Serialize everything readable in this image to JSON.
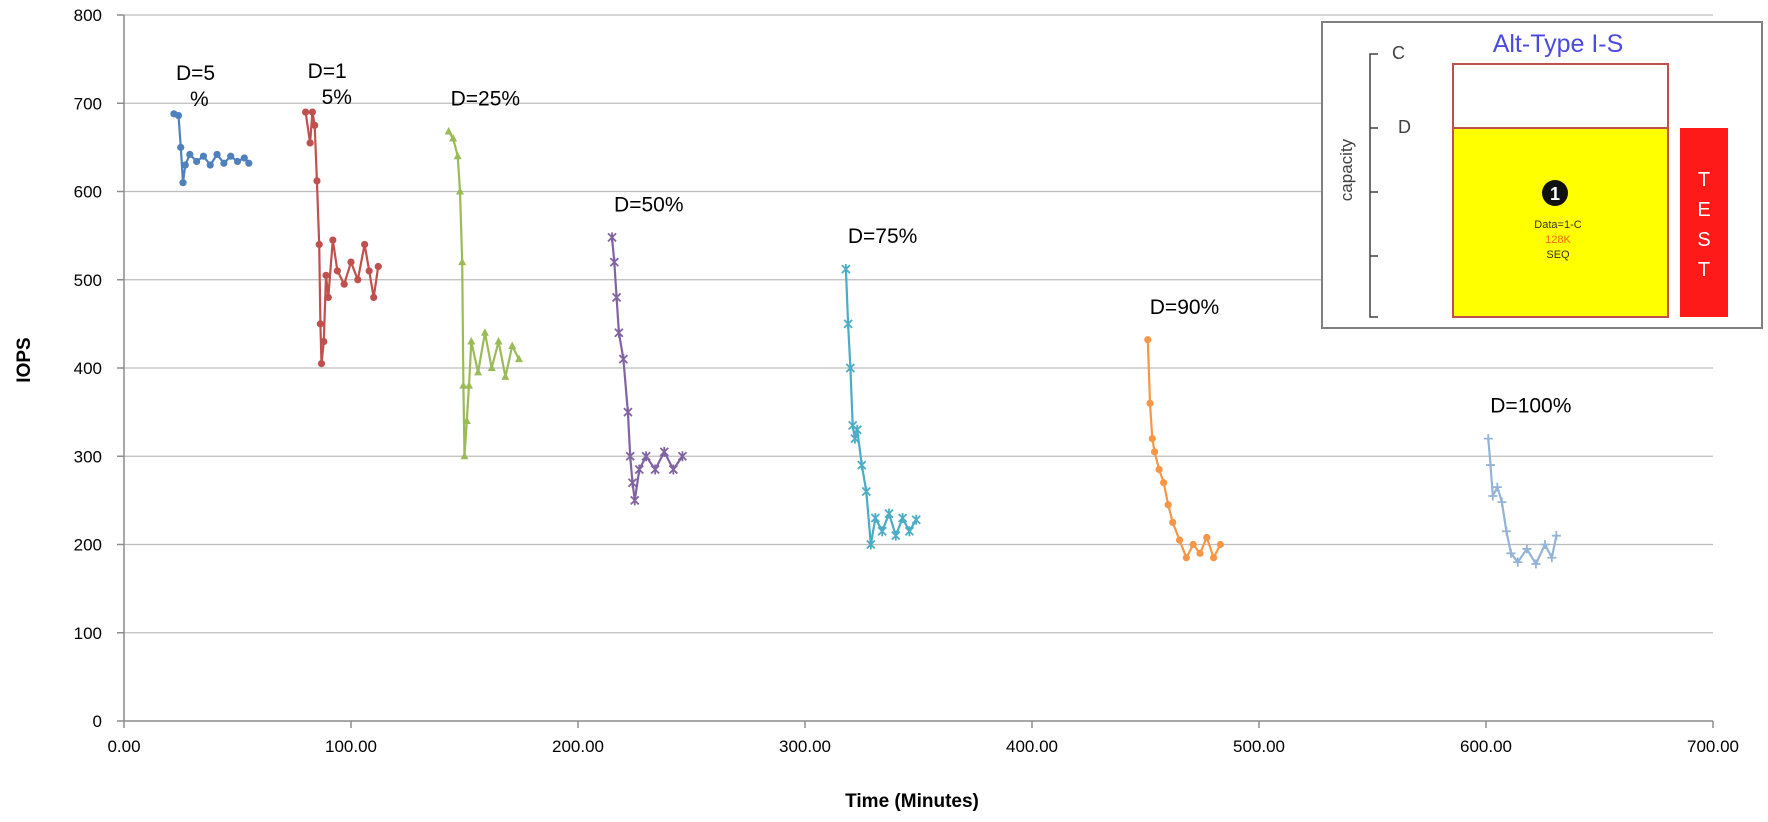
{
  "chart_data": {
    "type": "line",
    "xlabel": "Time (Minutes)",
    "ylabel": "IOPS",
    "xlim": [
      0,
      700
    ],
    "ylim": [
      0,
      800
    ],
    "x_ticks": [
      "0.00",
      "100.00",
      "200.00",
      "300.00",
      "400.00",
      "500.00",
      "600.00",
      "700.00"
    ],
    "y_ticks": [
      "0",
      "100",
      "200",
      "300",
      "400",
      "500",
      "600",
      "700",
      "800"
    ],
    "grid": true,
    "legend": "none",
    "series": [
      {
        "color": "#4f81bd",
        "marker": "circle",
        "label_lines": [
          "D=5",
          "%"
        ],
        "points": [
          [
            22,
            688
          ],
          [
            24,
            686
          ],
          [
            25,
            650
          ],
          [
            26,
            610
          ],
          [
            27,
            630
          ],
          [
            29,
            642
          ],
          [
            32,
            634
          ],
          [
            35,
            640
          ],
          [
            38,
            630
          ],
          [
            41,
            642
          ],
          [
            44,
            632
          ],
          [
            47,
            640
          ],
          [
            50,
            634
          ],
          [
            53,
            638
          ],
          [
            55,
            632
          ]
        ]
      },
      {
        "color": "#c0504d",
        "marker": "circle",
        "label_lines": [
          "D=1",
          "5%"
        ],
        "points": [
          [
            80,
            690
          ],
          [
            82,
            655
          ],
          [
            83,
            690
          ],
          [
            84,
            675
          ],
          [
            85,
            612
          ],
          [
            86,
            540
          ],
          [
            86.5,
            450
          ],
          [
            87,
            405
          ],
          [
            88,
            430
          ],
          [
            89,
            505
          ],
          [
            90,
            480
          ],
          [
            92,
            545
          ],
          [
            94,
            510
          ],
          [
            97,
            495
          ],
          [
            100,
            520
          ],
          [
            103,
            500
          ],
          [
            106,
            540
          ],
          [
            108,
            510
          ],
          [
            110,
            480
          ],
          [
            112,
            515
          ]
        ]
      },
      {
        "color": "#9bbb59",
        "marker": "triangle",
        "label_lines": [
          "D=25%"
        ],
        "points": [
          [
            143,
            668
          ],
          [
            145,
            660
          ],
          [
            147,
            640
          ],
          [
            148,
            600
          ],
          [
            149,
            520
          ],
          [
            149.5,
            380
          ],
          [
            150,
            300
          ],
          [
            151,
            340
          ],
          [
            152,
            380
          ],
          [
            153,
            430
          ],
          [
            156,
            395
          ],
          [
            159,
            440
          ],
          [
            162,
            400
          ],
          [
            165,
            430
          ],
          [
            168,
            390
          ],
          [
            171,
            425
          ],
          [
            174,
            410
          ]
        ]
      },
      {
        "color": "#8064a2",
        "marker": "star",
        "label_lines": [
          "D=50%"
        ],
        "points": [
          [
            215,
            548
          ],
          [
            216,
            520
          ],
          [
            217,
            480
          ],
          [
            218,
            440
          ],
          [
            220,
            410
          ],
          [
            222,
            350
          ],
          [
            223,
            300
          ],
          [
            224,
            270
          ],
          [
            225,
            250
          ],
          [
            227,
            285
          ],
          [
            230,
            300
          ],
          [
            234,
            285
          ],
          [
            238,
            305
          ],
          [
            242,
            285
          ],
          [
            246,
            300
          ]
        ]
      },
      {
        "color": "#4bacc6",
        "marker": "star",
        "label_lines": [
          "D=75%"
        ],
        "points": [
          [
            318,
            512
          ],
          [
            319,
            450
          ],
          [
            320,
            400
          ],
          [
            321,
            335
          ],
          [
            322,
            320
          ],
          [
            323,
            330
          ],
          [
            325,
            290
          ],
          [
            327,
            260
          ],
          [
            329,
            200
          ],
          [
            331,
            230
          ],
          [
            334,
            215
          ],
          [
            337,
            235
          ],
          [
            340,
            210
          ],
          [
            343,
            230
          ],
          [
            346,
            215
          ],
          [
            349,
            228
          ]
        ]
      },
      {
        "color": "#f79646",
        "marker": "circle",
        "label_lines": [
          "D=90%"
        ],
        "points": [
          [
            451,
            432
          ],
          [
            452,
            360
          ],
          [
            453,
            320
          ],
          [
            454,
            305
          ],
          [
            456,
            285
          ],
          [
            458,
            270
          ],
          [
            460,
            245
          ],
          [
            462,
            225
          ],
          [
            465,
            205
          ],
          [
            468,
            185
          ],
          [
            471,
            200
          ],
          [
            474,
            190
          ],
          [
            477,
            208
          ],
          [
            480,
            185
          ],
          [
            483,
            200
          ]
        ]
      },
      {
        "color": "#95b3d7",
        "marker": "plus",
        "label_lines": [
          "D=100%"
        ],
        "points": [
          [
            601,
            320
          ],
          [
            602,
            290
          ],
          [
            603,
            255
          ],
          [
            605,
            265
          ],
          [
            607,
            248
          ],
          [
            609,
            215
          ],
          [
            611,
            190
          ],
          [
            614,
            180
          ],
          [
            618,
            195
          ],
          [
            622,
            178
          ],
          [
            626,
            200
          ],
          [
            629,
            185
          ],
          [
            631,
            210
          ]
        ]
      }
    ]
  },
  "inset": {
    "title": "Alt-Type I-S",
    "c_label": "C",
    "d_label": "D",
    "axis_label": "capacity",
    "badge": "1",
    "box_line1": "Data=1-C",
    "box_line2": "128K",
    "box_line3": "SEQ",
    "test_letters": [
      "T",
      "E",
      "S",
      "T"
    ],
    "colors": {
      "title": "#4a4ae0",
      "fill": "#ffff00",
      "outline": "#c0504d",
      "test_bar": "#ff1a1a"
    }
  }
}
